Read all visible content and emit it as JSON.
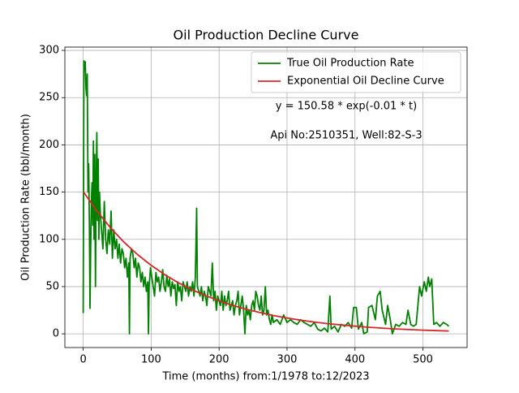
{
  "chart_data": {
    "type": "line",
    "title": "Oil Production Decline Curve",
    "xlabel": "Time (months) from:1/1978 to:12/2023",
    "ylabel": "Oil Production Rate (bbl/month)",
    "annotations": [
      "y = 150.58 * exp(-0.01 * t)",
      "Api No:2510351, Well:82-S-3"
    ],
    "xlim": [
      -27,
      565
    ],
    "ylim": [
      -14.5,
      303.5
    ],
    "xticks": [
      0,
      100,
      200,
      300,
      400,
      500
    ],
    "yticks": [
      0,
      50,
      100,
      150,
      200,
      250,
      300
    ],
    "grid": true,
    "legend": "upper right",
    "series": [
      {
        "name": "True Oil Production Rate",
        "color": "#008000",
        "x": [
          0,
          1,
          2,
          3,
          4,
          5,
          6,
          7,
          8,
          9,
          10,
          11,
          12,
          13,
          14,
          15,
          16,
          17,
          18,
          19,
          20,
          21,
          22,
          23,
          24,
          25,
          27,
          29,
          31,
          33,
          35,
          37,
          39,
          41,
          43,
          45,
          47,
          49,
          51,
          53,
          55,
          57,
          59,
          61,
          63,
          65,
          67,
          68,
          69,
          71,
          73,
          75,
          77,
          79,
          81,
          83,
          85,
          87,
          89,
          91,
          93,
          95,
          96,
          97,
          99,
          101,
          103,
          105,
          107,
          109,
          111,
          113,
          115,
          117,
          119,
          121,
          123,
          125,
          127,
          129,
          131,
          133,
          135,
          137,
          139,
          141,
          143,
          145,
          147,
          149,
          151,
          153,
          155,
          157,
          159,
          161,
          163,
          165,
          167,
          168,
          170,
          172,
          174,
          176,
          178,
          180,
          182,
          184,
          186,
          188,
          190,
          192,
          194,
          196,
          198,
          200,
          202,
          204,
          206,
          208,
          210,
          212,
          214,
          216,
          218,
          220,
          222,
          224,
          226,
          228,
          230,
          232,
          234,
          236,
          238,
          240,
          242,
          244,
          246,
          248,
          250,
          252,
          254,
          256,
          258,
          260,
          262,
          264,
          266,
          268,
          270,
          272,
          274,
          276,
          278,
          280,
          285,
          290,
          295,
          300,
          305,
          310,
          315,
          320,
          325,
          330,
          335,
          340,
          345,
          350,
          355,
          360,
          363,
          365,
          370,
          375,
          380,
          385,
          390,
          395,
          398,
          402,
          405,
          410,
          413,
          418,
          420,
          425,
          430,
          433,
          437,
          440,
          445,
          448,
          452,
          455,
          460,
          465,
          470,
          475,
          478,
          482,
          486,
          490,
          495,
          498,
          502,
          505,
          508,
          510,
          513,
          516,
          520,
          525,
          530,
          535,
          538
        ],
        "values": [
          22,
          289,
          280,
          288,
          260,
          252,
          275,
          150,
          180,
          120,
          27,
          90,
          140,
          160,
          115,
          204,
          100,
          190,
          50,
          150,
          213,
          120,
          185,
          100,
          150,
          130,
          110,
          90,
          140,
          100,
          85,
          110,
          95,
          130,
          80,
          110,
          90,
          100,
          80,
          95,
          75,
          90,
          85,
          70,
          80,
          60,
          75,
          0,
          80,
          90,
          85,
          70,
          80,
          60,
          75,
          70,
          55,
          65,
          50,
          60,
          45,
          55,
          0,
          50,
          70,
          60,
          50,
          40,
          65,
          55,
          60,
          45,
          55,
          68,
          50,
          45,
          62,
          50,
          58,
          40,
          55,
          48,
          52,
          30,
          55,
          45,
          50,
          35,
          55,
          50,
          45,
          55,
          40,
          50,
          45,
          55,
          40,
          60,
          133,
          50,
          45,
          40,
          50,
          35,
          45,
          40,
          30,
          50,
          45,
          40,
          75,
          35,
          45,
          25,
          40,
          35,
          30,
          45,
          25,
          40,
          30,
          35,
          45,
          25,
          30,
          35,
          20,
          30,
          35,
          45,
          20,
          30,
          40,
          25,
          0,
          30,
          20,
          25,
          15,
          30,
          35,
          25,
          45,
          40,
          30,
          25,
          40,
          20,
          25,
          50,
          20,
          25,
          15,
          10,
          20,
          12,
          15,
          10,
          20,
          12,
          15,
          12,
          10,
          15,
          12,
          10,
          8,
          12,
          5,
          3,
          6,
          2,
          40,
          5,
          8,
          2,
          10,
          8,
          12,
          6,
          28,
          28,
          5,
          12,
          0,
          2,
          28,
          30,
          15,
          40,
          45,
          25,
          10,
          30,
          15,
          0,
          10,
          8,
          12,
          10,
          25,
          10,
          8,
          10,
          50,
          40,
          55,
          45,
          60,
          50,
          58,
          10,
          12,
          8,
          12,
          10,
          8
        ]
      },
      {
        "name": "Exponential Oil Decline Curve",
        "color": "#d62728",
        "x": [
          0,
          20,
          40,
          60,
          80,
          100,
          120,
          140,
          160,
          180,
          200,
          220,
          240,
          260,
          280,
          300,
          320,
          340,
          360,
          380,
          400,
          420,
          440,
          460,
          480,
          500,
          520,
          538
        ],
        "values": [
          150.6,
          130.1,
          112.4,
          97.1,
          83.9,
          72.5,
          62.6,
          54.1,
          46.7,
          40.4,
          34.9,
          30.1,
          26.0,
          22.5,
          19.4,
          16.8,
          14.5,
          12.5,
          10.8,
          9.4,
          8.1,
          7.0,
          6.0,
          5.2,
          4.5,
          3.9,
          3.4,
          3.0
        ]
      }
    ]
  }
}
